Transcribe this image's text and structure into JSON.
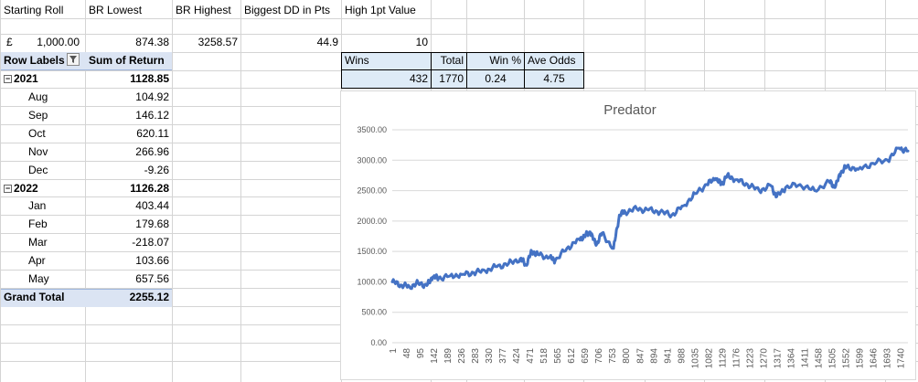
{
  "top": {
    "starting_roll_label": "Starting Roll",
    "br_lowest_label": "BR Lowest",
    "br_highest_label": "BR Highest",
    "biggest_dd_label": "Biggest DD in Pts",
    "high_1pt_label": "High 1pt Value",
    "currency": "£",
    "starting_roll": "1,000.00",
    "br_lowest": "874.38",
    "br_highest": "3258.57",
    "biggest_dd": "44.9",
    "high_1pt": "10"
  },
  "stats": {
    "headers": [
      "Wins",
      "Total",
      "Win %",
      "Ave Odds"
    ],
    "values": [
      "432",
      "1770",
      "0.24",
      "4.75"
    ]
  },
  "pivot": {
    "row_labels": "Row Labels",
    "sum_header": "Sum of Return",
    "groups": [
      {
        "label": "2021",
        "total": "1128.85",
        "months": [
          {
            "label": "Aug",
            "value": "104.92"
          },
          {
            "label": "Sep",
            "value": "146.12"
          },
          {
            "label": "Oct",
            "value": "620.11"
          },
          {
            "label": "Nov",
            "value": "266.96"
          },
          {
            "label": "Dec",
            "value": "-9.26"
          }
        ]
      },
      {
        "label": "2022",
        "total": "1126.28",
        "months": [
          {
            "label": "Jan",
            "value": "403.44"
          },
          {
            "label": "Feb",
            "value": "179.68"
          },
          {
            "label": "Mar",
            "value": "-218.07"
          },
          {
            "label": "Apr",
            "value": "103.66"
          },
          {
            "label": "May",
            "value": "657.56"
          }
        ]
      }
    ],
    "grand_total_label": "Grand Total",
    "grand_total": "2255.12"
  },
  "chart_data": {
    "type": "line",
    "title": "Predator",
    "xlabel": "",
    "ylabel": "",
    "ylim": [
      0,
      3500
    ],
    "y_ticks": [
      "0.00",
      "500.00",
      "1000.00",
      "1500.00",
      "2000.00",
      "2500.00",
      "3000.00",
      "3500.00"
    ],
    "x_ticks": [
      "1",
      "48",
      "95",
      "142",
      "189",
      "236",
      "283",
      "330",
      "377",
      "424",
      "471",
      "518",
      "565",
      "612",
      "659",
      "706",
      "753",
      "800",
      "847",
      "894",
      "941",
      "988",
      "1035",
      "1082",
      "1129",
      "1176",
      "1223",
      "1270",
      "1317",
      "1364",
      "1411",
      "1458",
      "1505",
      "1552",
      "1599",
      "1646",
      "1693",
      "1740"
    ],
    "grid": "horizontal",
    "color": "#4472c4",
    "series": [
      {
        "x": [
          1,
          30,
          60,
          90,
          120,
          140,
          160,
          200,
          240,
          280,
          320,
          360,
          400,
          440,
          460,
          480,
          500,
          540,
          560,
          600,
          640,
          660,
          680,
          700,
          720,
          760,
          780,
          800,
          840,
          880,
          920,
          960,
          1000,
          1040,
          1080,
          1110,
          1130,
          1150,
          1180,
          1220,
          1260,
          1300,
          1320,
          1350,
          1400,
          1450,
          1500,
          1520,
          1540,
          1560,
          1600,
          1650,
          1700,
          1740,
          1770
        ],
        "y": [
          1000,
          950,
          920,
          980,
          940,
          1080,
          1060,
          1100,
          1120,
          1150,
          1180,
          1250,
          1300,
          1380,
          1280,
          1500,
          1450,
          1400,
          1350,
          1550,
          1700,
          1750,
          1820,
          1600,
          1800,
          1550,
          2100,
          2150,
          2200,
          2180,
          2150,
          2100,
          2250,
          2450,
          2600,
          2700,
          2600,
          2750,
          2680,
          2600,
          2500,
          2580,
          2400,
          2550,
          2600,
          2500,
          2650,
          2550,
          2800,
          2900,
          2850,
          2950,
          3000,
          3200,
          3150
        ]
      }
    ]
  }
}
